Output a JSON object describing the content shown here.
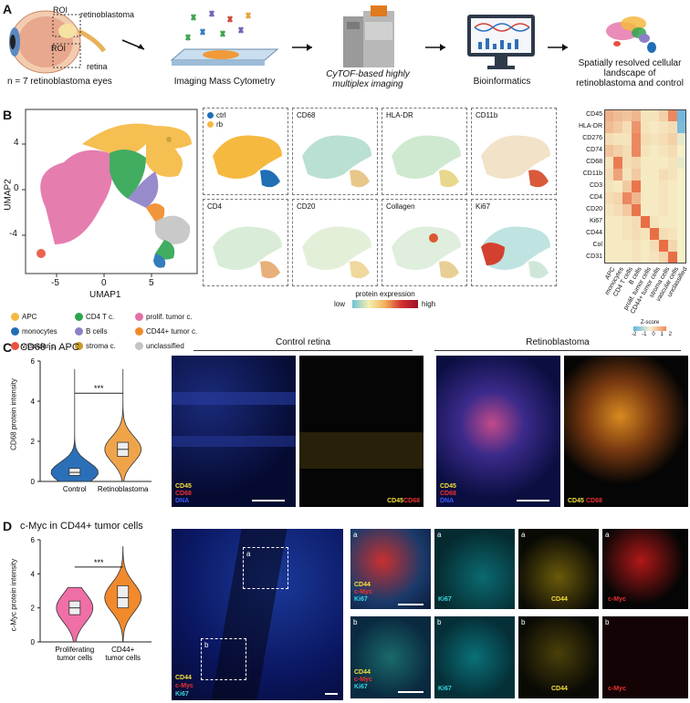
{
  "panelA": {
    "label": "A",
    "retinoblastoma": "retinoblastoma",
    "roi1": "ROI",
    "roi2": "ROI",
    "retina": "retina",
    "eyes": "n = 7 retinoblastoma eyes",
    "imc": "Imaging Mass Cytometry",
    "cytof": "CyTOF-based highly multiplex imaging",
    "bioinfo": "Bioinformatics",
    "result": "Spatially resolved cellular landscape of retinoblastoma and control"
  },
  "panelB": {
    "label": "B",
    "umap": {
      "xlabel": "UMAP1",
      "ylabel": "UMAP2",
      "xticks": [
        "-5",
        "0",
        "5"
      ],
      "yticks": [
        "4",
        "0",
        "-4"
      ]
    },
    "legend": [
      {
        "name": "APC",
        "color": "#f5b940"
      },
      {
        "name": "CD4 T c.",
        "color": "#2ea44f"
      },
      {
        "name": "prolif. tumor c.",
        "color": "#e36fa7"
      },
      {
        "name": "monocytes",
        "color": "#1f6fb5"
      },
      {
        "name": "B cells",
        "color": "#8d7fc7"
      },
      {
        "name": "CD44+ tumor c.",
        "color": "#f08a28"
      },
      {
        "name": "vascular c.",
        "color": "#e8533f"
      },
      {
        "name": "stroma c.",
        "color": "#c89a2a"
      },
      {
        "name": "unclassified",
        "color": "#c4c4c4"
      }
    ],
    "small_maps": [
      "",
      "CD68",
      "HLA-DR",
      "CD11b",
      "CD4",
      "CD20",
      "Collagen",
      "Ki67"
    ],
    "ctrl": "ctrl",
    "rb": "rb",
    "expr_title": "protein expression",
    "expr_low": "low",
    "expr_high": "high",
    "heatmap": {
      "rows": [
        "CD45",
        "HLA-DR",
        "CD276",
        "CD74",
        "CD68",
        "CD11b",
        "CD3",
        "CD4",
        "CD20",
        "Ki67",
        "CD44",
        "Col",
        "CD31"
      ],
      "cols": [
        "APC",
        "monocytes",
        "CD4 T cells",
        "B cells",
        "prolif. tumor cells",
        "CD44+ tumor cells",
        "stroma cells",
        "vascular cells",
        "unclassified"
      ],
      "values": [
        [
          1.0,
          0.8,
          0.7,
          0.9,
          0.2,
          0.2,
          0.5,
          1.6,
          -1.6
        ],
        [
          0.8,
          0.6,
          0.3,
          1.4,
          0.2,
          0.1,
          0.2,
          0.3,
          -1.5
        ],
        [
          0.3,
          0.2,
          0.2,
          1.6,
          0.3,
          0.2,
          0.3,
          0.5,
          -0.2
        ],
        [
          0.7,
          0.5,
          0.3,
          1.6,
          0.2,
          0.1,
          0.2,
          0.3,
          0.0
        ],
        [
          0.2,
          1.8,
          0.3,
          0.4,
          0.1,
          0.1,
          0.1,
          0.2,
          -0.2
        ],
        [
          0.3,
          1.2,
          0.2,
          0.6,
          0.1,
          0.1,
          0.3,
          0.2,
          0.0
        ],
        [
          0.2,
          0.1,
          0.6,
          1.9,
          0.1,
          0.1,
          0.2,
          0.1,
          0.0
        ],
        [
          0.3,
          0.4,
          1.6,
          0.9,
          0.1,
          0.1,
          0.2,
          0.1,
          0.0
        ],
        [
          0.2,
          0.3,
          0.6,
          1.9,
          0.1,
          0.1,
          0.2,
          0.1,
          0.0
        ],
        [
          0.1,
          0.1,
          0.2,
          0.3,
          2.0,
          0.2,
          0.1,
          0.1,
          0.0
        ],
        [
          0.1,
          0.1,
          0.2,
          0.3,
          0.2,
          2.0,
          0.3,
          0.2,
          0.0
        ],
        [
          0.1,
          0.1,
          0.1,
          0.2,
          0.1,
          0.3,
          2.0,
          0.4,
          0.0
        ],
        [
          0.1,
          0.1,
          0.1,
          0.2,
          0.1,
          0.2,
          0.4,
          2.0,
          0.0
        ]
      ],
      "zlabel": "Z-score",
      "zticks": [
        "-2",
        "-1",
        "0",
        "1",
        "2"
      ]
    }
  },
  "panelC": {
    "label": "C",
    "title": "CD68 in APC",
    "ylabel": "CD68 protein intensity",
    "yticks": [
      "6",
      "4",
      "2",
      "0"
    ],
    "groups": [
      "Control",
      "Retinoblastoma"
    ],
    "sig": "***",
    "control_retina": "Control retina",
    "retinoblastoma": "Retinoblastoma",
    "m1": [
      "CD45",
      "CD68",
      "DNA"
    ],
    "m2": [
      "CD45",
      "CD68"
    ]
  },
  "panelD": {
    "label": "D",
    "title": "c-Myc in CD44+ tumor cells",
    "ylabel": "c-Myc protein intensity",
    "yticks": [
      "6",
      "4",
      "2",
      "0"
    ],
    "groups": [
      "Proliferating tumor cells",
      "CD44+ tumor cells"
    ],
    "sig": "***",
    "big_labels": [
      "CD44",
      "c-Myc",
      "Ki67"
    ],
    "box_a": "a",
    "box_b": "b",
    "tiles": [
      "Ki67",
      "CD44",
      "c-Myc"
    ]
  },
  "chart_data": [
    {
      "type": "violin",
      "title": "CD68 in APC",
      "ylabel": "CD68 protein intensity",
      "categories": [
        "Control",
        "Retinoblastoma"
      ],
      "ylim": [
        0,
        6
      ],
      "median": [
        0.45,
        1.6
      ],
      "q1": [
        0.3,
        1.25
      ],
      "q3": [
        0.65,
        1.95
      ],
      "colors": [
        "#2a6fb8",
        "#f0a44a"
      ]
    },
    {
      "type": "violin",
      "title": "c-Myc in CD44+ tumor cells",
      "ylabel": "c-Myc protein intensity",
      "categories": [
        "Proliferating tumor cells",
        "CD44+ tumor cells"
      ],
      "ylim": [
        0,
        6
      ],
      "median": [
        2.0,
        2.6
      ],
      "q1": [
        1.6,
        2.0
      ],
      "q3": [
        2.4,
        3.3
      ],
      "colors": [
        "#ef6fa6",
        "#f28a2c"
      ]
    }
  ]
}
